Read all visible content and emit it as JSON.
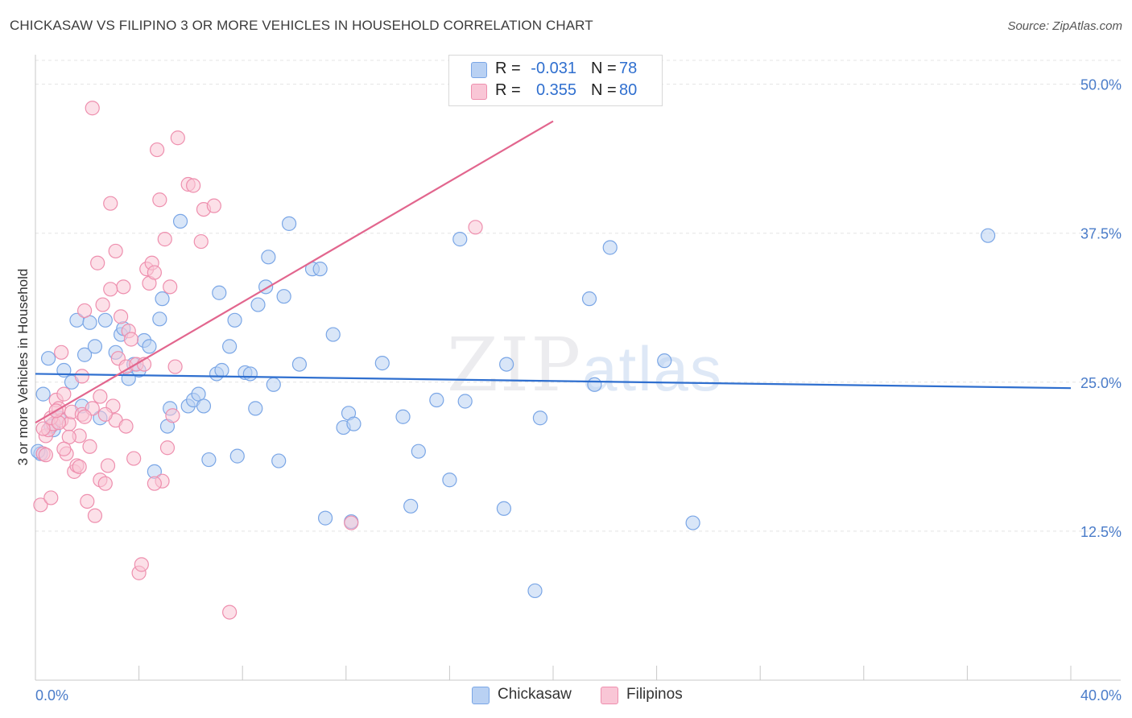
{
  "title": "CHICKASAW VS FILIPINO 3 OR MORE VEHICLES IN HOUSEHOLD CORRELATION CHART",
  "source": "Source: ZipAtlas.com",
  "watermark": {
    "zip": "ZIP",
    "atlas": "atlas"
  },
  "legend": {
    "rows": [
      {
        "r_label": "R =",
        "r_value": "-0.031",
        "n_label": "N =",
        "n_value": "78"
      },
      {
        "r_label": "R =",
        "r_value": "0.355",
        "n_label": "N =",
        "n_value": "80"
      }
    ]
  },
  "bottom_legend": [
    "Chickasaw",
    "Filipinos"
  ],
  "colors": {
    "blue_fill": "#b9d1f3",
    "blue_stroke": "#7aa6e6",
    "blue_line": "#2f6fcf",
    "pink_fill": "#f9c6d6",
    "pink_stroke": "#ee8fae",
    "pink_line": "#e2668e",
    "grid": "#e4e4e4",
    "axis_text": "#4a7cc9"
  },
  "chart_data": {
    "type": "scatter",
    "title": "CHICKASAW VS FILIPINO 3 OR MORE VEHICLES IN HOUSEHOLD CORRELATION CHART",
    "xlabel": "",
    "ylabel": "3 or more Vehicles in Household",
    "xlim": [
      0,
      40
    ],
    "ylim": [
      0,
      52
    ],
    "x_tick_labels": [
      "0.0%",
      "40.0%"
    ],
    "y_ticks": [
      12.5,
      25.0,
      37.5,
      50.0
    ],
    "y_tick_labels": [
      "12.5%",
      "25.0%",
      "37.5%",
      "50.0%"
    ],
    "series": [
      {
        "name": "Chickasaw",
        "r": -0.031,
        "n": 78,
        "trend": {
          "x": [
            0,
            40
          ],
          "y": [
            25.7,
            24.5
          ]
        },
        "points": [
          [
            0.2,
            19.0
          ],
          [
            0.3,
            24.0
          ],
          [
            0.5,
            27.0
          ],
          [
            0.7,
            21.0
          ],
          [
            0.9,
            22.0
          ],
          [
            1.1,
            26.0
          ],
          [
            1.4,
            25.0
          ],
          [
            1.6,
            30.2
          ],
          [
            1.8,
            23.0
          ],
          [
            1.9,
            27.3
          ],
          [
            2.1,
            30.0
          ],
          [
            2.3,
            28.0
          ],
          [
            2.5,
            22.0
          ],
          [
            2.7,
            30.2
          ],
          [
            3.1,
            27.5
          ],
          [
            3.3,
            29.0
          ],
          [
            3.4,
            29.5
          ],
          [
            3.6,
            25.3
          ],
          [
            3.8,
            26.5
          ],
          [
            4.0,
            26.0
          ],
          [
            4.2,
            28.5
          ],
          [
            4.4,
            28.0
          ],
          [
            4.6,
            17.5
          ],
          [
            4.8,
            30.3
          ],
          [
            4.9,
            32.0
          ],
          [
            5.1,
            21.3
          ],
          [
            5.2,
            22.8
          ],
          [
            5.6,
            38.5
          ],
          [
            5.9,
            23.0
          ],
          [
            6.1,
            23.5
          ],
          [
            6.3,
            24.0
          ],
          [
            6.5,
            23.0
          ],
          [
            6.7,
            18.5
          ],
          [
            7.0,
            25.7
          ],
          [
            7.1,
            32.5
          ],
          [
            7.2,
            26.0
          ],
          [
            7.5,
            28.0
          ],
          [
            7.7,
            30.2
          ],
          [
            7.8,
            18.8
          ],
          [
            8.1,
            25.8
          ],
          [
            8.3,
            25.7
          ],
          [
            8.5,
            22.8
          ],
          [
            8.6,
            31.5
          ],
          [
            8.9,
            33.0
          ],
          [
            9.0,
            35.5
          ],
          [
            9.2,
            24.8
          ],
          [
            9.4,
            18.4
          ],
          [
            9.6,
            32.2
          ],
          [
            9.8,
            38.3
          ],
          [
            10.2,
            26.5
          ],
          [
            10.7,
            34.5
          ],
          [
            11.0,
            34.5
          ],
          [
            11.2,
            13.6
          ],
          [
            11.5,
            29.0
          ],
          [
            11.9,
            21.2
          ],
          [
            12.1,
            22.4
          ],
          [
            12.2,
            13.3
          ],
          [
            12.3,
            21.5
          ],
          [
            13.4,
            26.6
          ],
          [
            14.2,
            22.1
          ],
          [
            14.5,
            14.6
          ],
          [
            14.8,
            19.2
          ],
          [
            15.5,
            23.5
          ],
          [
            16.0,
            16.8
          ],
          [
            16.4,
            37.0
          ],
          [
            16.6,
            23.4
          ],
          [
            18.1,
            14.4
          ],
          [
            18.2,
            26.5
          ],
          [
            19.3,
            7.5
          ],
          [
            19.5,
            22.0
          ],
          [
            21.4,
            32.0
          ],
          [
            21.6,
            24.8
          ],
          [
            22.2,
            36.3
          ],
          [
            24.3,
            26.8
          ],
          [
            25.4,
            13.2
          ],
          [
            36.8,
            37.3
          ],
          [
            0.1,
            19.2
          ],
          [
            0.6,
            21.3
          ]
        ]
      },
      {
        "name": "Filipinos",
        "r": 0.355,
        "n": 80,
        "trend": {
          "x": [
            0,
            20
          ],
          "y": [
            21.6,
            46.9
          ]
        },
        "points": [
          [
            0.2,
            14.7
          ],
          [
            0.3,
            19.0
          ],
          [
            0.4,
            20.5
          ],
          [
            0.5,
            21.0
          ],
          [
            0.6,
            15.3
          ],
          [
            0.7,
            21.5
          ],
          [
            0.8,
            23.5
          ],
          [
            0.9,
            22.8
          ],
          [
            1.0,
            21.8
          ],
          [
            1.1,
            24.0
          ],
          [
            1.2,
            19.0
          ],
          [
            1.3,
            21.5
          ],
          [
            1.4,
            22.5
          ],
          [
            1.5,
            17.5
          ],
          [
            1.6,
            18.0
          ],
          [
            1.7,
            20.5
          ],
          [
            1.8,
            22.3
          ],
          [
            1.9,
            31.0
          ],
          [
            2.0,
            15.0
          ],
          [
            2.1,
            19.6
          ],
          [
            2.2,
            22.8
          ],
          [
            2.3,
            13.8
          ],
          [
            2.4,
            35.0
          ],
          [
            2.5,
            16.8
          ],
          [
            2.6,
            31.5
          ],
          [
            2.7,
            16.5
          ],
          [
            2.8,
            18.0
          ],
          [
            2.9,
            40.0
          ],
          [
            3.0,
            23.0
          ],
          [
            3.1,
            21.8
          ],
          [
            3.2,
            27.0
          ],
          [
            3.3,
            30.5
          ],
          [
            3.4,
            33.0
          ],
          [
            3.5,
            26.3
          ],
          [
            3.6,
            29.3
          ],
          [
            3.7,
            28.6
          ],
          [
            3.8,
            18.6
          ],
          [
            3.9,
            26.5
          ],
          [
            4.0,
            9.0
          ],
          [
            4.1,
            9.7
          ],
          [
            4.2,
            26.5
          ],
          [
            4.3,
            34.5
          ],
          [
            4.4,
            33.3
          ],
          [
            4.5,
            35.0
          ],
          [
            4.6,
            34.2
          ],
          [
            4.7,
            44.5
          ],
          [
            4.8,
            40.3
          ],
          [
            4.9,
            16.7
          ],
          [
            5.0,
            37.0
          ],
          [
            5.1,
            19.5
          ],
          [
            5.2,
            33.0
          ],
          [
            5.3,
            22.2
          ],
          [
            5.4,
            26.3
          ],
          [
            5.5,
            45.5
          ],
          [
            5.9,
            41.6
          ],
          [
            6.1,
            41.5
          ],
          [
            6.4,
            36.8
          ],
          [
            6.5,
            39.5
          ],
          [
            6.9,
            39.8
          ],
          [
            7.5,
            5.7
          ],
          [
            12.2,
            13.2
          ],
          [
            17.0,
            38.0
          ],
          [
            2.2,
            48.0
          ],
          [
            1.0,
            27.5
          ],
          [
            1.8,
            25.5
          ],
          [
            0.3,
            21.1
          ],
          [
            2.9,
            32.8
          ],
          [
            1.3,
            20.4
          ],
          [
            0.6,
            22.0
          ],
          [
            0.9,
            21.6
          ],
          [
            3.1,
            36.0
          ],
          [
            1.7,
            17.9
          ],
          [
            4.6,
            16.5
          ],
          [
            2.5,
            23.8
          ],
          [
            1.1,
            19.4
          ],
          [
            0.8,
            22.6
          ],
          [
            1.9,
            22.1
          ],
          [
            2.7,
            22.3
          ],
          [
            3.5,
            21.3
          ],
          [
            0.4,
            18.9
          ]
        ]
      }
    ],
    "legend_position": "top-center",
    "grid": true
  }
}
